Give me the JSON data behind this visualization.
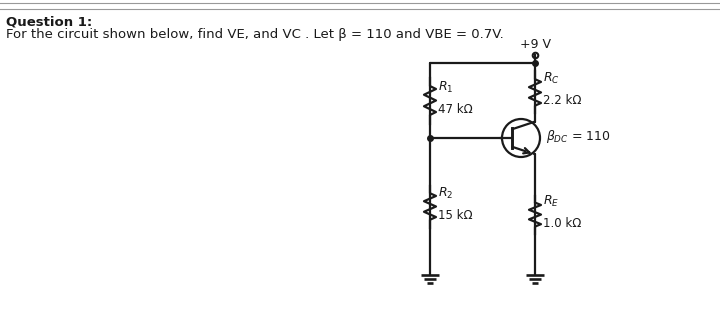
{
  "title_bold": "Question 1:",
  "subtitle": "For the circuit shown below, find VE, and VC . Let β = 110 and VBE = 0.7V.",
  "supply_voltage": "+9 V",
  "R1_label": "$R_1$",
  "R1_value": "47 kΩ",
  "R2_label": "$R_2$",
  "R2_value": "15 kΩ",
  "RC_label": "$R_C$",
  "RC_value": "2.2 kΩ",
  "RE_label": "$R_E$",
  "RE_value": "1.0 kΩ",
  "beta_label": "$\\beta_{DC}$ = 110",
  "bg_color": "#ffffff",
  "line_color": "#1a1a1a",
  "text_color": "#1a1a1a"
}
